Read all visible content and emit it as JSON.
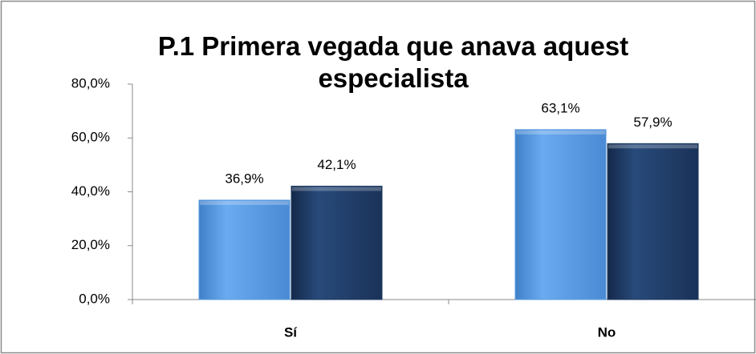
{
  "chart_data": {
    "type": "bar",
    "title": "P.1 Primera vegada que anava aquest especialista",
    "categories": [
      "Sí",
      "No"
    ],
    "series": [
      {
        "color": "#5a9be0",
        "values": [
          36.9,
          63.1
        ],
        "value_labels": [
          "36,9%",
          "63,1%"
        ]
      },
      {
        "color": "#1f3a63",
        "values": [
          42.1,
          57.9
        ],
        "value_labels": [
          "42,1%",
          "57,9%"
        ]
      }
    ],
    "ylim": [
      0,
      80
    ],
    "yticks": [
      {
        "value": 0,
        "label": "0,0%"
      },
      {
        "value": 20,
        "label": "20,0%"
      },
      {
        "value": 40,
        "label": "40,0%"
      },
      {
        "value": 60,
        "label": "60,0%"
      },
      {
        "value": 80,
        "label": "80,0%"
      }
    ],
    "grid": false
  }
}
